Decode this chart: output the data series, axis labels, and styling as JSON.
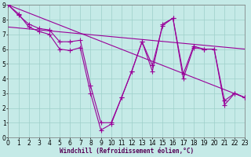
{
  "bg_color": "#c5eae7",
  "grid_color": "#9ecfca",
  "line_color": "#990099",
  "xlabel": "Windchill (Refroidissement éolien,°C)",
  "xlim": [
    0,
    23
  ],
  "ylim": [
    0,
    9
  ],
  "xtick_labels": [
    "0",
    "1",
    "2",
    "3",
    "4",
    "5",
    "6",
    "7",
    "8",
    "9",
    "10",
    "11",
    "12",
    "13",
    "14",
    "15",
    "16",
    "17",
    "18",
    "19",
    "20",
    "21",
    "22",
    "23"
  ],
  "ytick_labels": [
    "0",
    "1",
    "2",
    "3",
    "4",
    "5",
    "6",
    "7",
    "8",
    "9"
  ],
  "curve1_x": [
    0,
    1,
    2,
    3,
    4,
    5,
    6,
    7,
    8,
    9,
    10,
    11,
    12,
    13,
    14,
    15,
    16,
    17,
    18,
    19,
    20,
    21,
    22,
    23
  ],
  "curve1_y": [
    9.0,
    8.4,
    7.5,
    7.2,
    7.0,
    6.0,
    5.9,
    6.1,
    3.0,
    0.5,
    0.9,
    2.7,
    4.5,
    6.5,
    4.5,
    7.7,
    8.1,
    4.0,
    6.1,
    6.0,
    6.0,
    2.2,
    3.0,
    2.7
  ],
  "curve2_x": [
    0,
    1,
    2,
    3,
    4,
    5,
    6,
    7,
    8,
    9,
    10,
    11,
    12,
    13,
    14,
    15,
    16,
    17,
    18,
    19,
    20,
    21,
    22,
    23
  ],
  "curve2_y": [
    9.0,
    8.3,
    7.7,
    7.4,
    7.3,
    6.5,
    6.5,
    6.6,
    3.5,
    1.0,
    1.0,
    2.7,
    4.5,
    6.5,
    4.9,
    7.6,
    8.1,
    4.3,
    6.2,
    6.0,
    6.0,
    2.5,
    3.0,
    2.7
  ],
  "trend1_x": [
    0,
    23
  ],
  "trend1_y": [
    9.0,
    2.7
  ],
  "trend2_x": [
    0,
    23
  ],
  "trend2_y": [
    7.5,
    6.0
  ],
  "marker": "+",
  "markersize": 4,
  "linewidth": 0.8,
  "tick_fontsize": 5.5
}
